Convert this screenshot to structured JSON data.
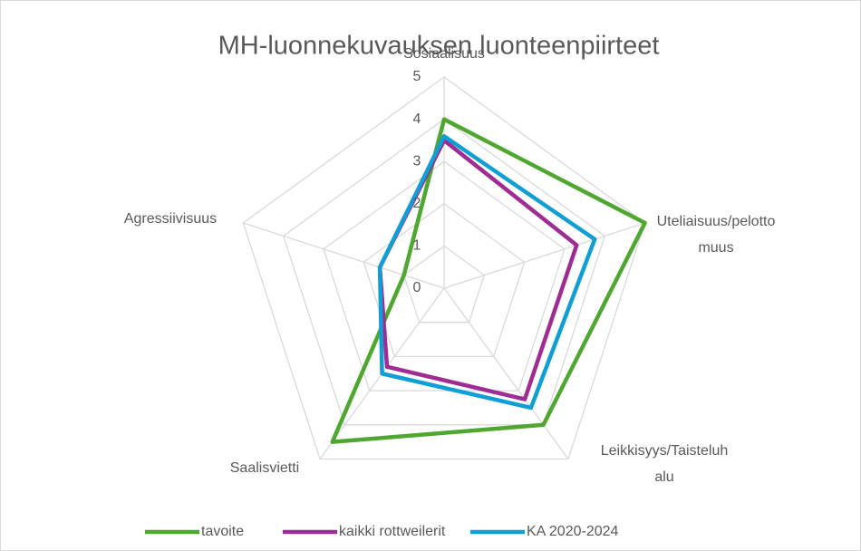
{
  "chart_data": {
    "type": "radar",
    "title": "MH-luonnekuvauksen luonteenpiirteet",
    "categories": [
      "Sosiaalisuus",
      "Uteliaisuus/pelottomuus",
      "Leikkisyys/Taisteluhalu",
      "Saalisvietti",
      "Agressiivisuus"
    ],
    "series": [
      {
        "name": "tavoite",
        "color": "#4ea72e",
        "values": [
          4,
          5,
          4,
          4.5,
          1
        ]
      },
      {
        "name": "kaikki rottweilerit",
        "color": "#a02b93",
        "values": [
          3.5,
          3.3,
          3.25,
          2.3,
          1.6
        ]
      },
      {
        "name": "KA 2020-2024",
        "color": "#0f9ed5",
        "values": [
          3.6,
          3.75,
          3.5,
          2.5,
          1.6
        ]
      }
    ],
    "ylim": [
      0,
      5
    ],
    "yticks": [
      0,
      1,
      2,
      3,
      4,
      5
    ],
    "grid": true,
    "legend": "bottom"
  }
}
